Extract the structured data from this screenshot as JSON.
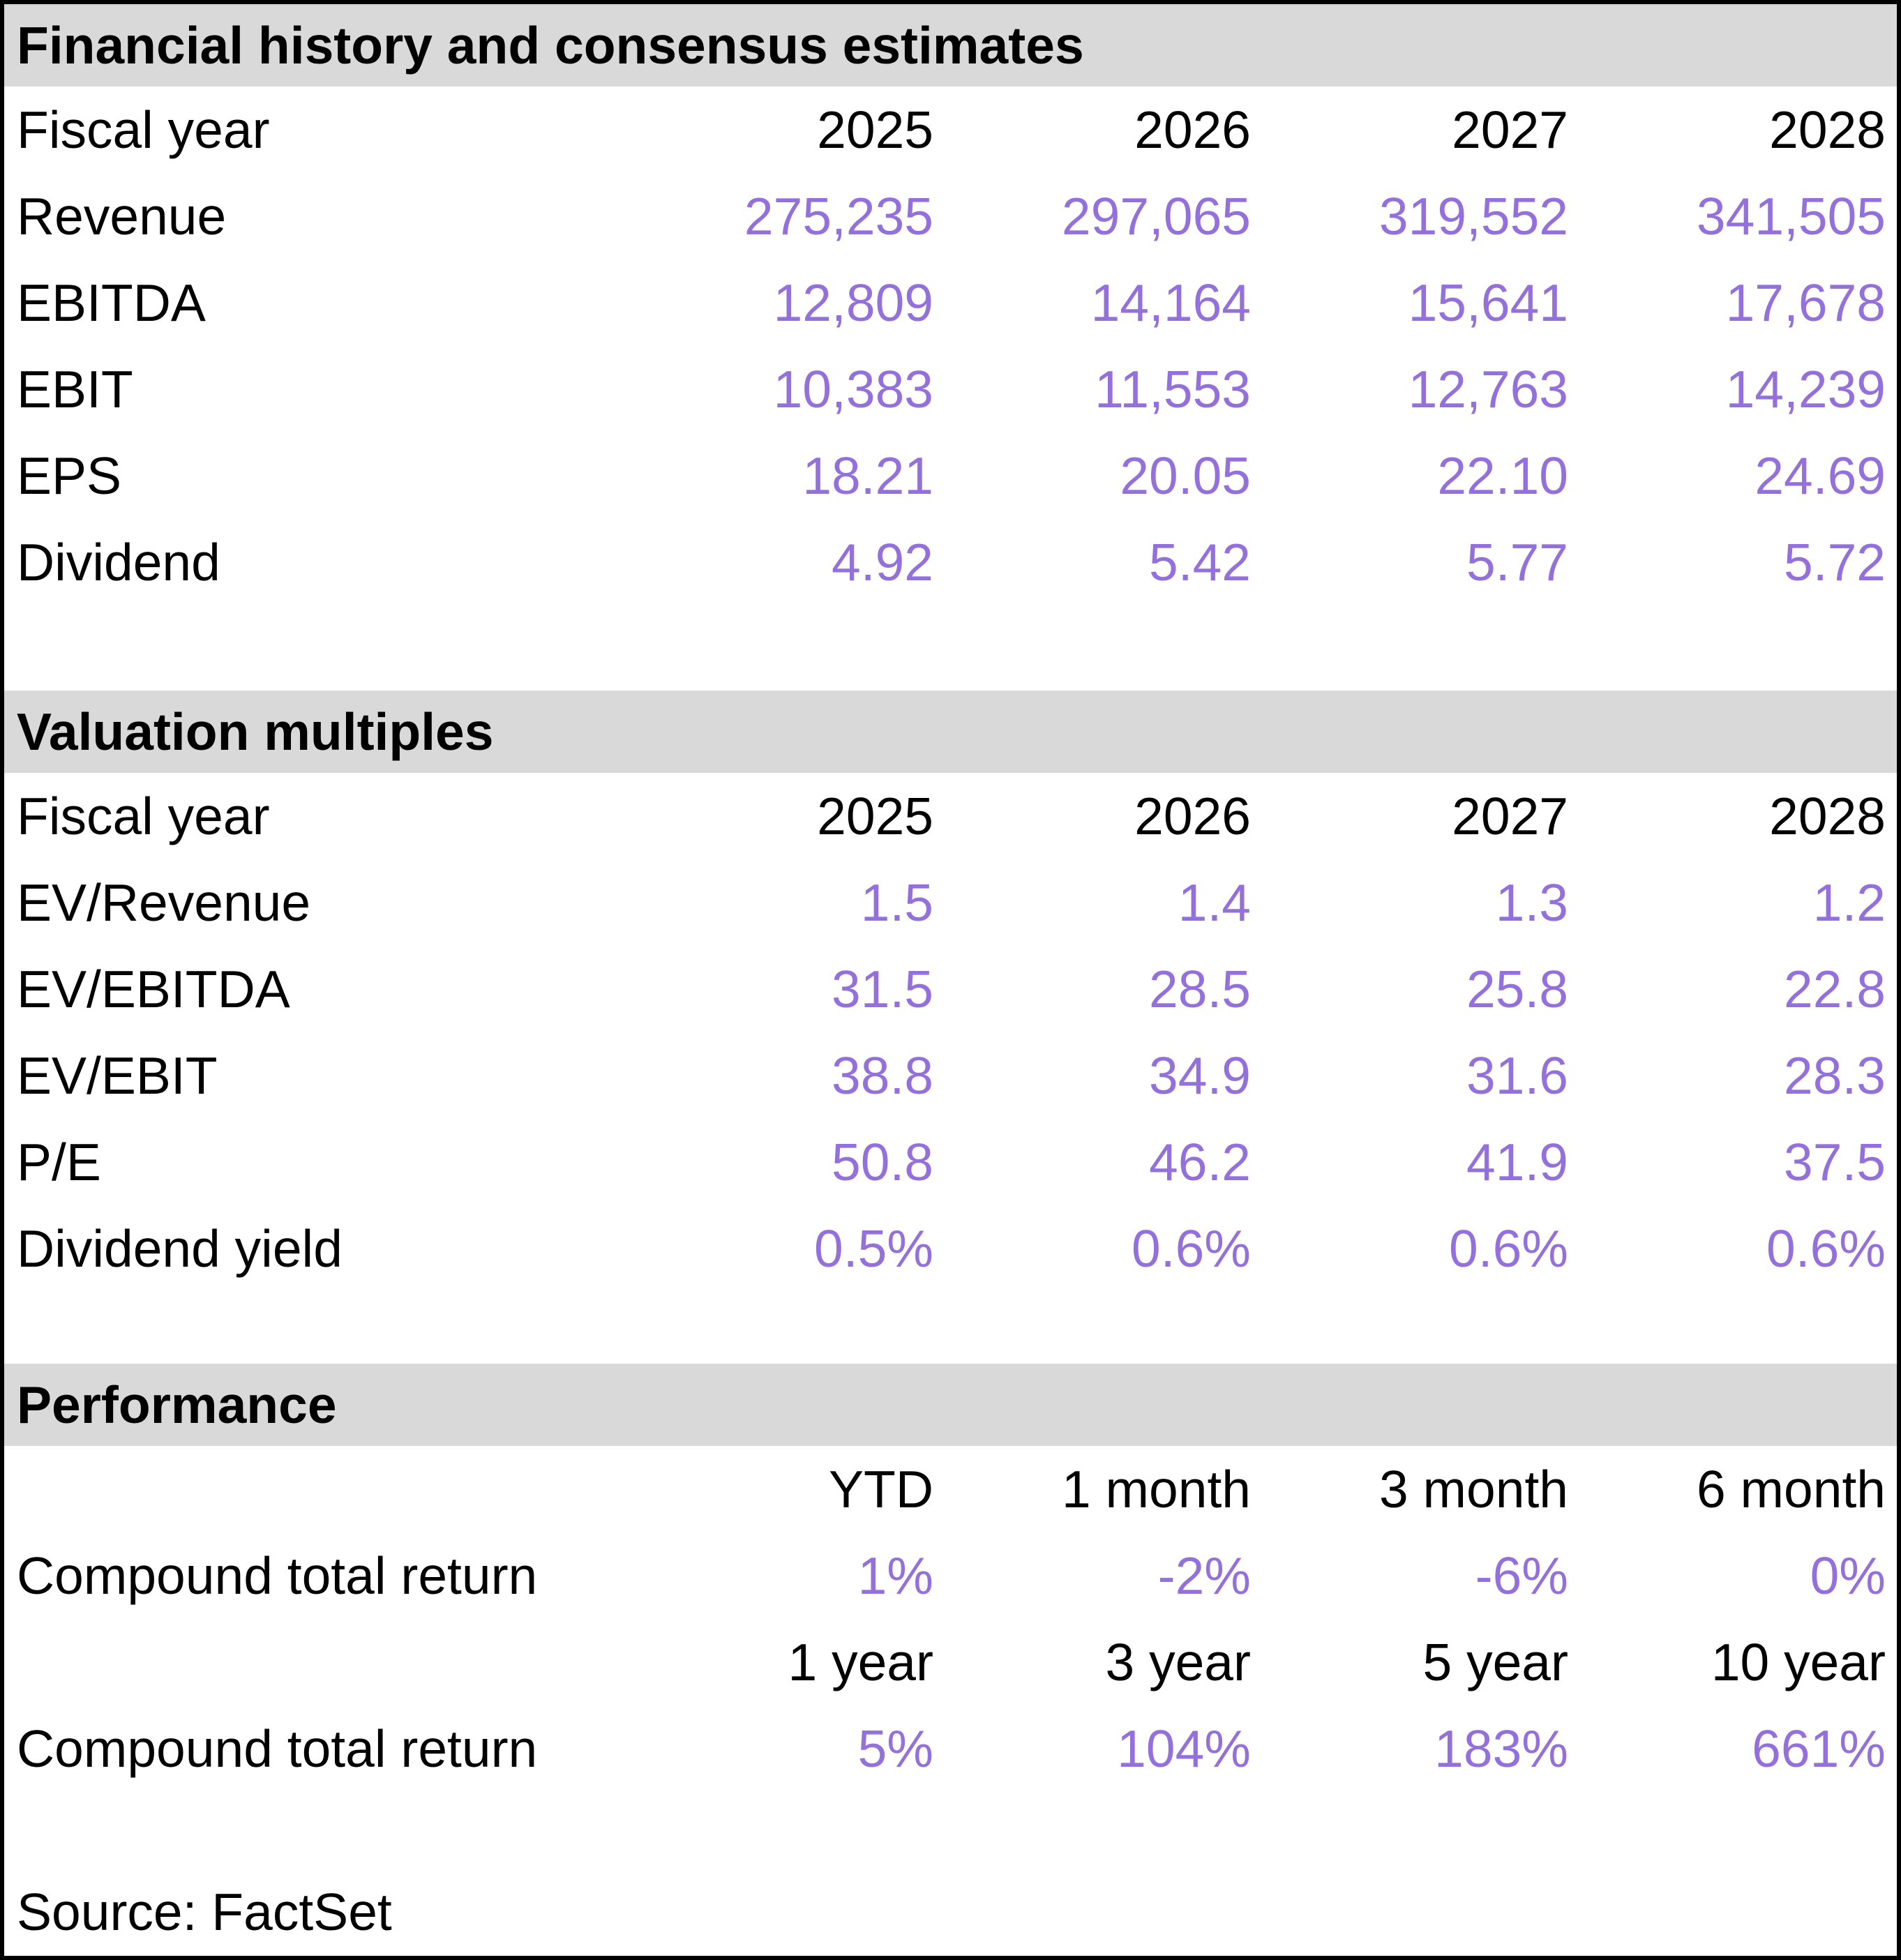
{
  "colors": {
    "value_text": "#9370db",
    "section_band": "#d9d9d9",
    "label_text": "#000000"
  },
  "sections": [
    {
      "title": "Financial history and consensus estimates",
      "header": {
        "label": "Fiscal year",
        "cols": [
          "2025",
          "2026",
          "2027",
          "2028"
        ]
      },
      "rows": [
        {
          "label": "Revenue",
          "values": [
            "275,235",
            "297,065",
            "319,552",
            "341,505"
          ]
        },
        {
          "label": "EBITDA",
          "values": [
            "12,809",
            "14,164",
            "15,641",
            "17,678"
          ]
        },
        {
          "label": "EBIT",
          "values": [
            "10,383",
            "11,553",
            "12,763",
            "14,239"
          ]
        },
        {
          "label": "EPS",
          "values": [
            "18.21",
            "20.05",
            "22.10",
            "24.69"
          ]
        },
        {
          "label": "Dividend",
          "values": [
            "4.92",
            "5.42",
            "5.77",
            "5.72"
          ]
        }
      ]
    },
    {
      "title": "Valuation multiples",
      "header": {
        "label": "Fiscal year",
        "cols": [
          "2025",
          "2026",
          "2027",
          "2028"
        ]
      },
      "rows": [
        {
          "label": "EV/Revenue",
          "values": [
            "1.5",
            "1.4",
            "1.3",
            "1.2"
          ]
        },
        {
          "label": "EV/EBITDA",
          "values": [
            "31.5",
            "28.5",
            "25.8",
            "22.8"
          ]
        },
        {
          "label": "EV/EBIT",
          "values": [
            "38.8",
            "34.9",
            "31.6",
            "28.3"
          ]
        },
        {
          "label": "P/E",
          "values": [
            "50.8",
            "46.2",
            "41.9",
            "37.5"
          ]
        },
        {
          "label": "Dividend yield",
          "values": [
            "0.5%",
            "0.6%",
            "0.6%",
            "0.6%"
          ]
        }
      ]
    },
    {
      "title": "Performance",
      "header1": {
        "label": "",
        "cols": [
          "YTD",
          "1 month",
          "3 month",
          "6 month"
        ]
      },
      "row1": {
        "label": "Compound total return",
        "values": [
          "1%",
          "-2%",
          "-6%",
          "0%"
        ]
      },
      "header2": {
        "label": "",
        "cols": [
          "1 year",
          "3 year",
          "5 year",
          "10 year"
        ]
      },
      "row2": {
        "label": "Compound total return",
        "values": [
          "5%",
          "104%",
          "183%",
          "661%"
        ]
      }
    }
  ],
  "source": "Source: FactSet"
}
